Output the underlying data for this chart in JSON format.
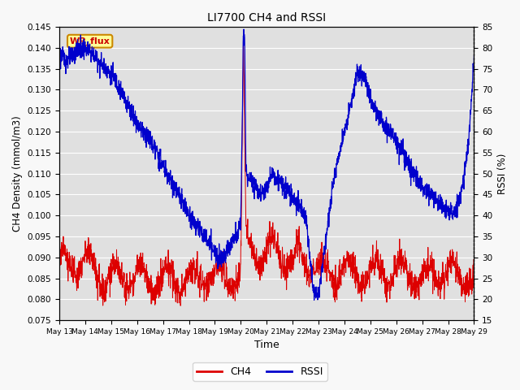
{
  "title": "LI7700 CH4 and RSSI",
  "xlabel": "Time",
  "ylabel_left": "CH4 Density (mmol/m3)",
  "ylabel_right": "RSSI (%)",
  "ylim_left": [
    0.075,
    0.145
  ],
  "ylim_right": [
    15,
    85
  ],
  "yticks_left": [
    0.075,
    0.08,
    0.085,
    0.09,
    0.095,
    0.1,
    0.105,
    0.11,
    0.115,
    0.12,
    0.125,
    0.13,
    0.135,
    0.14,
    0.145
  ],
  "yticks_right": [
    15,
    20,
    25,
    30,
    35,
    40,
    45,
    50,
    55,
    60,
    65,
    70,
    75,
    80,
    85
  ],
  "color_ch4": "#dd0000",
  "color_rssi": "#0000cc",
  "background_color": "#e0e0e0",
  "annotation_text": "WP_flux",
  "annotation_color": "#cc0000",
  "annotation_bg": "#ffff99",
  "annotation_border": "#cc8800",
  "rssi_keypoints_t": [
    0,
    0.3,
    0.8,
    1.2,
    1.8,
    2.2,
    2.5,
    3.0,
    3.5,
    4.0,
    4.5,
    5.0,
    5.5,
    5.8,
    6.0,
    6.3,
    6.5,
    6.8,
    7.0,
    7.1,
    7.15,
    7.2,
    7.5,
    7.8,
    8.0,
    8.2,
    8.5,
    8.8,
    9.0,
    9.2,
    9.5,
    9.8,
    10.0,
    10.3,
    10.5,
    10.8,
    11.0,
    11.2,
    11.5,
    11.8,
    12.0,
    12.3,
    12.5,
    13.0,
    13.5,
    14.0,
    14.5,
    14.8,
    15.0,
    15.2,
    15.5,
    15.8,
    16.0
  ],
  "rssi_keypoints_v": [
    78,
    77,
    80,
    79,
    75,
    72,
    68,
    62,
    58,
    52,
    46,
    40,
    36,
    33,
    31,
    30,
    32,
    35,
    38,
    83,
    82,
    50,
    48,
    45,
    47,
    50,
    48,
    46,
    44,
    43,
    40,
    22,
    21,
    35,
    45,
    55,
    60,
    65,
    74,
    72,
    68,
    64,
    62,
    58,
    52,
    47,
    44,
    42,
    41,
    40,
    45,
    58,
    78
  ],
  "ch4_keypoints_t": [
    0,
    0.5,
    1.0,
    1.5,
    2.0,
    2.5,
    3.0,
    3.5,
    4.0,
    4.5,
    5.0,
    5.5,
    6.0,
    6.5,
    7.0,
    7.1,
    7.15,
    7.2,
    7.5,
    8.0,
    8.3,
    8.5,
    8.8,
    9.0,
    9.2,
    9.5,
    9.8,
    10.0,
    10.5,
    11.0,
    11.5,
    12.0,
    12.5,
    13.0,
    13.5,
    14.0,
    14.5,
    15.0,
    15.5,
    16.0
  ],
  "ch4_keypoints_v": [
    0.089,
    0.088,
    0.089,
    0.086,
    0.085,
    0.085,
    0.086,
    0.084,
    0.085,
    0.084,
    0.085,
    0.085,
    0.086,
    0.085,
    0.086,
    0.141,
    0.115,
    0.094,
    0.092,
    0.09,
    0.093,
    0.091,
    0.089,
    0.088,
    0.09,
    0.089,
    0.088,
    0.087,
    0.086,
    0.087,
    0.086,
    0.086,
    0.087,
    0.086,
    0.086,
    0.085,
    0.086,
    0.086,
    0.085,
    0.085
  ],
  "xtick_labels": [
    "May 13",
    "May 14",
    "May 15",
    "May 16",
    "May 17",
    "May 18",
    "May 19",
    "May 20",
    "May 21",
    "May 22",
    "May 23",
    "May 24",
    "May 25",
    "May 26",
    "May 27",
    "May 28",
    "May 29"
  ]
}
